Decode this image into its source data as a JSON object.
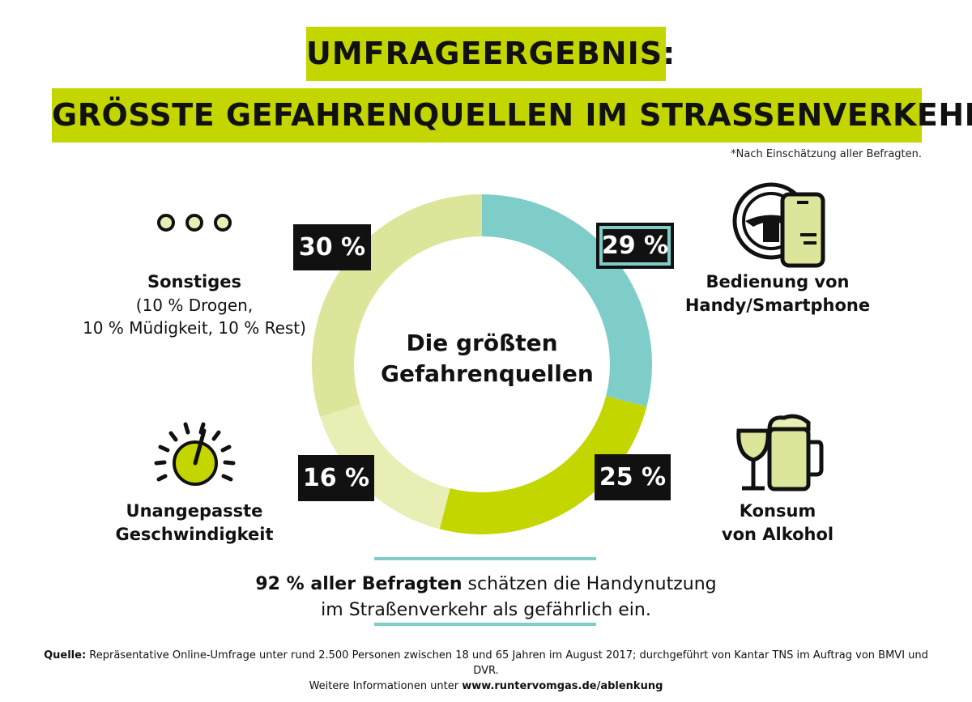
{
  "title_line1": "UMFRAGEERGEBNIS:",
  "title_line2": "GRÖSSTE GEFAHRENQUELLEN IM STRASSENVERKEHR*",
  "footnote": "*Nach Einschätzung aller Befragten.",
  "center_line1": "Die größten",
  "center_line2": "Gefahrenquellen",
  "labels": {
    "phone_line1": "Bedienung von",
    "phone_line2": "Handy/Smartphone",
    "other_title": "Sonstiges",
    "other_line1": "(10 % Drogen,",
    "other_line2": "10 % Müdigkeit, 10 % Rest)",
    "speed_line1": "Unangepasste",
    "speed_line2": "Geschwindigkeit",
    "alc_line1": "Konsum",
    "alc_line2": "von Alkohol"
  },
  "percent_labels": {
    "phone": "29 %",
    "alcohol": "25 %",
    "speed": "16 %",
    "other": "30 %"
  },
  "stat": {
    "bold": "92 % aller Befragten",
    "rest_line1": " schätzen die Handynutzung",
    "line2": "im Straßenverkehr als gefährlich ein."
  },
  "source": {
    "label": "Quelle:",
    "text": " Repräsentative Online-Umfrage unter rund 2.500 Personen zwischen 18 und 65 Jahren im August 2017; durchgeführt von Kantar TNS im Auftrag von BMVI und DVR.",
    "line2_prefix": "Weitere Informationen unter ",
    "url": "www.runtervomgas.de/ablenkung"
  },
  "chart_data": {
    "type": "pie",
    "title": "Die größten Gefahrenquellen",
    "categories": [
      "Bedienung von Handy/Smartphone",
      "Konsum von Alkohol",
      "Unangepasste Geschwindigkeit",
      "Sonstiges"
    ],
    "values": [
      29,
      25,
      16,
      30
    ],
    "unit": "%",
    "colors": [
      "#7fcdc8",
      "#c3d600",
      "#e8eeb4",
      "#dce59a"
    ],
    "donut": true
  },
  "colors": {
    "accent": "#c3d600",
    "teal": "#7fcdc8",
    "dark": "#111111"
  }
}
